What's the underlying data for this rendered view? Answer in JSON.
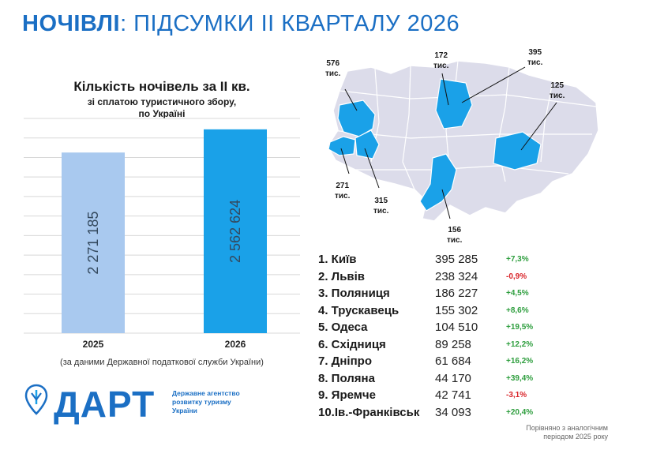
{
  "header": {
    "title_bold": "НОЧІВЛІ",
    "title_rest": ": ПІДСУМКИ ІІ КВАРТАЛУ 2026"
  },
  "chart_data": {
    "type": "bar",
    "title": "Кількість ночівель за ІІ кв.",
    "subtitle_line1": "зі сплатою туристичного збору,",
    "subtitle_line2": "по Україні",
    "categories": [
      "2025",
      "2026"
    ],
    "values": [
      2271185,
      2562624
    ],
    "value_labels": [
      "2 271 185",
      "2 562 624"
    ],
    "colors": [
      "#a9c9ef",
      "#1aa1e8"
    ],
    "ylim": [
      0,
      2700000
    ],
    "grid": true
  },
  "source_note": "(за даними Державної податкової служби України)",
  "logo": {
    "name": "ДАРТ",
    "agency_line1": "Державне агентство",
    "agency_line2": "розвитку туризму",
    "agency_line3": "України",
    "colors": {
      "brand": "#1b6fc4",
      "highlight": "#1aa1e8",
      "map_base": "#dcdcea"
    }
  },
  "map": {
    "labels": [
      {
        "id": "lviv",
        "text": "576\nтис."
      },
      {
        "id": "kyiv-north",
        "text": "172\nтис."
      },
      {
        "id": "kyiv",
        "text": "395\nтис."
      },
      {
        "id": "dnipro",
        "text": "125\nтис."
      },
      {
        "id": "zakarpattia",
        "text": "271\nтис."
      },
      {
        "id": "ivano-frankivsk",
        "text": "315\nтис."
      },
      {
        "id": "odesa",
        "text": "156\nтис."
      }
    ]
  },
  "ranking": [
    {
      "name": "1. Київ",
      "value": "395 285",
      "change": "+7,3%",
      "positive": true
    },
    {
      "name": "2. Львів",
      "value": "238 324",
      "change": "-0,9%",
      "positive": false
    },
    {
      "name": "3. Поляниця",
      "value": "186 227",
      "change": "+4,5%",
      "positive": true
    },
    {
      "name": "4. Трускавець",
      "value": "155 302",
      "change": "+8,6%",
      "positive": true
    },
    {
      "name": "5. Одеса",
      "value": "104 510",
      "change": "+19,5%",
      "positive": true
    },
    {
      "name": "6. Східниця",
      "value": "89 258",
      "change": "+12,2%",
      "positive": true
    },
    {
      "name": "7. Дніпро",
      "value": "61 684",
      "change": "+16,2%",
      "positive": true
    },
    {
      "name": "8. Поляна",
      "value": "44 170",
      "change": "+39,4%",
      "positive": true
    },
    {
      "name": "9. Яремче",
      "value": "42 741",
      "change": "-3,1%",
      "positive": false
    },
    {
      "name": "10.Ів.-Франківськ",
      "value": "34 093",
      "change": "+20,4%",
      "positive": true
    }
  ],
  "footnote": "Порівняно з аналогічним\nперіодом 2025 року"
}
